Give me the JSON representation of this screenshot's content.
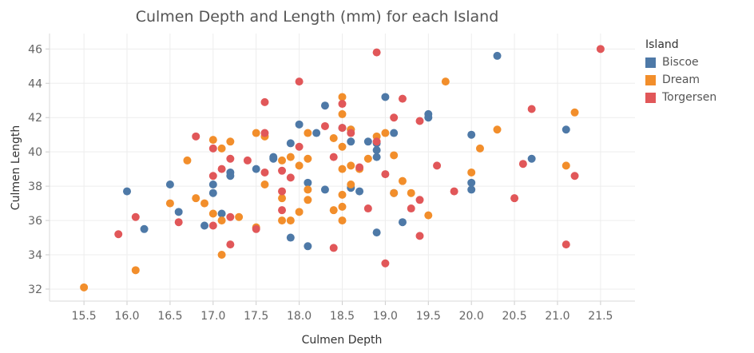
{
  "chart_data": {
    "type": "scatter",
    "title": "Culmen Depth and Length (mm) for each Island",
    "xlabel": "Culmen Depth",
    "ylabel": "Culmen Length",
    "xlim": [
      15.1,
      21.9
    ],
    "ylim": [
      31.3,
      46.9
    ],
    "xticks": [
      "15.5",
      "16.0",
      "16.5",
      "17.0",
      "17.5",
      "18.0",
      "18.5",
      "19.0",
      "19.5",
      "20.0",
      "20.5",
      "21.0",
      "21.5"
    ],
    "yticks": [
      "32",
      "34",
      "36",
      "38",
      "40",
      "42",
      "44",
      "46"
    ],
    "grid": true,
    "legend_title": "Island",
    "legend_position": "right",
    "series": [
      {
        "name": "Biscoe",
        "color": "#4e79a7",
        "x": [
          16.0,
          16.2,
          16.5,
          16.6,
          16.9,
          17.0,
          17.0,
          17.1,
          17.2,
          17.2,
          17.5,
          17.7,
          17.7,
          17.9,
          17.9,
          18.0,
          18.1,
          18.1,
          18.2,
          18.3,
          18.3,
          18.5,
          18.6,
          18.6,
          18.6,
          18.7,
          18.8,
          18.9,
          18.9,
          18.9,
          18.9,
          19.0,
          19.1,
          19.1,
          19.2,
          19.5,
          19.5,
          20.0,
          20.0,
          20.0,
          20.3,
          20.7,
          21.1
        ],
        "y": [
          37.7,
          35.5,
          38.1,
          36.5,
          35.7,
          38.1,
          37.6,
          36.4,
          38.8,
          38.6,
          39.0,
          39.7,
          39.6,
          40.5,
          35.0,
          41.6,
          38.2,
          34.5,
          41.1,
          42.7,
          37.8,
          41.4,
          41.3,
          40.6,
          37.9,
          37.7,
          40.6,
          40.5,
          40.1,
          39.7,
          35.3,
          43.2,
          41.1,
          37.6,
          35.9,
          42.2,
          42.0,
          41.0,
          38.2,
          37.8,
          45.6,
          39.6,
          41.3
        ]
      },
      {
        "name": "Dream",
        "color": "#f28e2b",
        "x": [
          15.5,
          16.1,
          16.5,
          16.7,
          16.8,
          16.9,
          17.0,
          17.0,
          17.1,
          17.1,
          17.1,
          17.2,
          17.3,
          17.5,
          17.5,
          17.6,
          17.6,
          17.8,
          17.8,
          17.8,
          17.9,
          17.9,
          18.0,
          18.0,
          18.1,
          18.1,
          18.1,
          18.1,
          18.4,
          18.4,
          18.5,
          18.5,
          18.5,
          18.5,
          18.5,
          18.5,
          18.5,
          18.6,
          18.6,
          18.6,
          18.7,
          18.8,
          18.9,
          19.0,
          19.1,
          19.1,
          19.2,
          19.3,
          19.5,
          19.7,
          20.0,
          20.1,
          20.3,
          21.1,
          21.2
        ],
        "y": [
          32.1,
          33.1,
          37.0,
          39.5,
          37.3,
          37.0,
          40.7,
          36.4,
          40.2,
          36.0,
          34.0,
          40.6,
          36.2,
          41.1,
          35.6,
          40.9,
          38.1,
          39.5,
          37.3,
          36.0,
          39.7,
          36.0,
          39.2,
          36.5,
          41.1,
          39.6,
          37.8,
          37.2,
          40.8,
          36.6,
          43.2,
          42.2,
          40.3,
          39.0,
          37.5,
          36.8,
          36.0,
          41.3,
          39.2,
          38.1,
          39.0,
          39.6,
          40.9,
          41.1,
          39.8,
          37.6,
          38.3,
          37.6,
          36.3,
          44.1,
          38.8,
          40.2,
          41.3,
          39.2,
          42.3
        ]
      },
      {
        "name": "Torgersen",
        "color": "#e15759",
        "x": [
          15.9,
          16.1,
          16.6,
          16.8,
          17.0,
          17.0,
          17.0,
          17.1,
          17.2,
          17.2,
          17.2,
          17.4,
          17.5,
          17.6,
          17.6,
          17.6,
          17.8,
          17.8,
          17.8,
          17.9,
          18.0,
          18.0,
          18.3,
          18.4,
          18.4,
          18.5,
          18.5,
          18.6,
          18.7,
          18.8,
          18.9,
          18.9,
          19.0,
          19.0,
          19.1,
          19.2,
          19.3,
          19.4,
          19.4,
          19.4,
          19.6,
          19.8,
          20.5,
          20.6,
          20.7,
          21.1,
          21.2,
          21.5
        ],
        "y": [
          35.2,
          36.2,
          35.9,
          40.9,
          40.2,
          38.6,
          35.7,
          39.0,
          39.6,
          36.2,
          34.6,
          39.5,
          35.5,
          42.9,
          41.1,
          38.8,
          38.9,
          37.7,
          36.6,
          38.5,
          44.1,
          40.3,
          41.5,
          39.7,
          34.4,
          42.8,
          41.4,
          41.1,
          39.1,
          36.7,
          45.8,
          40.6,
          38.7,
          33.5,
          42.0,
          43.1,
          36.7,
          41.8,
          37.2,
          35.1,
          39.2,
          37.7,
          37.3,
          39.3,
          42.5,
          34.6,
          38.6,
          46.0
        ]
      }
    ]
  }
}
